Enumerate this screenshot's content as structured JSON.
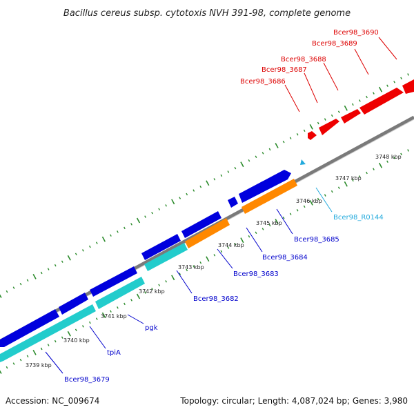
{
  "title": "Bacillus cereus subsp. cytotoxis NVH 391-98, complete genome",
  "footer": {
    "accession": "Accession: NC_009674",
    "topology": "Topology: circular; Length: 4,087,024 bp; Genes: 3,980"
  },
  "colors": {
    "forward_gene": "#ee0000",
    "reverse_gene": "#0000dd",
    "reverse_gene_alt": "#22cccc",
    "reverse_gene_orange": "#ff8800",
    "rna": "#22aadd",
    "backbone": "#888888",
    "tick": "#2a8a2a",
    "forward_label": "#dd0000",
    "reverse_label": "#0000cc",
    "rna_label": "#22aadd"
  },
  "kbp_labels": [
    "3739 kbp",
    "3740 kbp",
    "3741 kbp",
    "3742 kbp",
    "3743 kbp",
    "3744 kbp",
    "3745 kbp",
    "3746 kbp",
    "3747 kbp",
    "3748 kbp"
  ],
  "forward_labels": [
    "Bcer98_3686",
    "Bcer98_3687",
    "Bcer98_3688",
    "Bcer98_3689",
    "Bcer98_3690"
  ],
  "reverse_labels": [
    "Bcer98_3679",
    "tpiA",
    "pgk",
    "Bcer98_3682",
    "Bcer98_3683",
    "Bcer98_3684",
    "Bcer98_3685"
  ],
  "rna_labels": [
    "Bcer98_R0144"
  ]
}
